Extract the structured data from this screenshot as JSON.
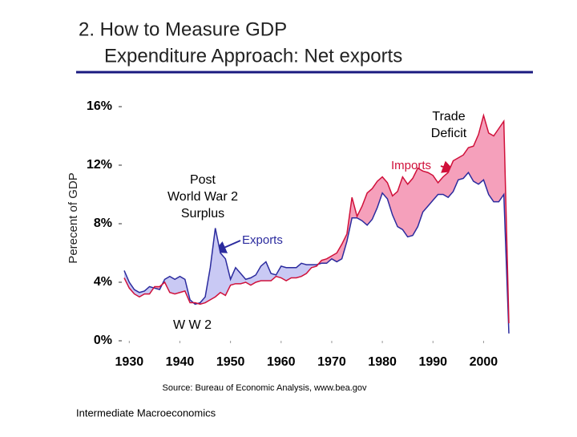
{
  "header": {
    "title": "2. How to Measure GDP",
    "subtitle": "Expenditure Approach: Net exports"
  },
  "chart_data": {
    "type": "line",
    "y_label": "Perecent of GDP",
    "x": [
      1929,
      1930,
      1931,
      1932,
      1933,
      1934,
      1935,
      1936,
      1937,
      1938,
      1939,
      1940,
      1941,
      1942,
      1943,
      1944,
      1945,
      1946,
      1947,
      1948,
      1949,
      1950,
      1951,
      1952,
      1953,
      1954,
      1955,
      1956,
      1957,
      1958,
      1959,
      1960,
      1961,
      1962,
      1963,
      1964,
      1965,
      1966,
      1967,
      1968,
      1969,
      1970,
      1971,
      1972,
      1973,
      1974,
      1975,
      1976,
      1977,
      1978,
      1979,
      1980,
      1981,
      1982,
      1983,
      1984,
      1985,
      1986,
      1987,
      1988,
      1989,
      1990,
      1991,
      1992,
      1993,
      1994,
      1995,
      1996,
      1997,
      1998,
      1999,
      2000,
      2001,
      2002,
      2003,
      2004,
      2005
    ],
    "series": [
      {
        "name": "Exports",
        "color": "#2b2b9e",
        "fill": "#c9c9f4",
        "values": [
          4.8,
          4.0,
          3.5,
          3.3,
          3.4,
          3.7,
          3.6,
          3.5,
          4.2,
          4.4,
          4.2,
          4.4,
          4.2,
          2.8,
          2.5,
          2.6,
          3.0,
          5.0,
          7.7,
          6.0,
          5.6,
          4.2,
          5.0,
          4.6,
          4.2,
          4.3,
          4.5,
          5.1,
          5.4,
          4.6,
          4.5,
          5.1,
          5.0,
          5.0,
          5.0,
          5.3,
          5.2,
          5.2,
          5.2,
          5.3,
          5.3,
          5.6,
          5.4,
          5.6,
          6.8,
          8.4,
          8.4,
          8.2,
          7.9,
          8.3,
          9.1,
          10.1,
          9.7,
          8.6,
          7.8,
          7.6,
          7.1,
          7.2,
          7.8,
          8.8,
          9.2,
          9.6,
          10.0,
          10.0,
          9.8,
          10.2,
          11.0,
          11.1,
          11.5,
          10.9,
          10.7,
          11.0,
          10.0,
          9.5,
          9.5,
          10.0,
          0.5
        ]
      },
      {
        "name": "Imports",
        "color": "#d0103a",
        "fill": "#f5a0bb",
        "values": [
          4.3,
          3.6,
          3.2,
          3.0,
          3.2,
          3.2,
          3.7,
          3.7,
          4.0,
          3.3,
          3.2,
          3.3,
          3.4,
          2.6,
          2.6,
          2.5,
          2.6,
          2.8,
          3.0,
          3.3,
          3.1,
          3.8,
          3.9,
          3.9,
          4.0,
          3.8,
          4.0,
          4.1,
          4.1,
          4.1,
          4.4,
          4.3,
          4.1,
          4.3,
          4.3,
          4.4,
          4.6,
          5.0,
          5.1,
          5.5,
          5.6,
          5.8,
          6.0,
          6.6,
          7.3,
          9.8,
          8.5,
          9.2,
          10.1,
          10.4,
          10.9,
          11.2,
          10.8,
          9.9,
          10.2,
          11.2,
          10.7,
          11.1,
          11.8,
          11.6,
          11.5,
          11.3,
          10.8,
          11.2,
          11.5,
          12.3,
          12.5,
          12.7,
          13.2,
          13.3,
          14.1,
          15.4,
          14.2,
          14.0,
          14.5,
          15.0,
          1.2
        ]
      }
    ],
    "xlim": [
      1929,
      2005
    ],
    "xticks": [
      1930,
      1940,
      1950,
      1960,
      1970,
      1980,
      1990,
      2000
    ],
    "ylim": [
      0,
      16
    ],
    "yticks": [
      {
        "value": 0,
        "label": "0%"
      },
      {
        "value": 4,
        "label": "4%"
      },
      {
        "value": 8,
        "label": "8%"
      },
      {
        "value": 12,
        "label": "12%"
      },
      {
        "value": 16,
        "label": "16%"
      }
    ],
    "annotations": [
      {
        "lines": [
          "Trade",
          "Deficit"
        ]
      },
      {
        "lines": [
          "Post",
          "World War 2",
          "Surplus"
        ]
      },
      {
        "lines": [
          "W W 2"
        ]
      }
    ],
    "source": "Source: Bureau of Economic Analysis, www.bea.gov"
  },
  "footer": "Intermediate  Macroeconomics"
}
